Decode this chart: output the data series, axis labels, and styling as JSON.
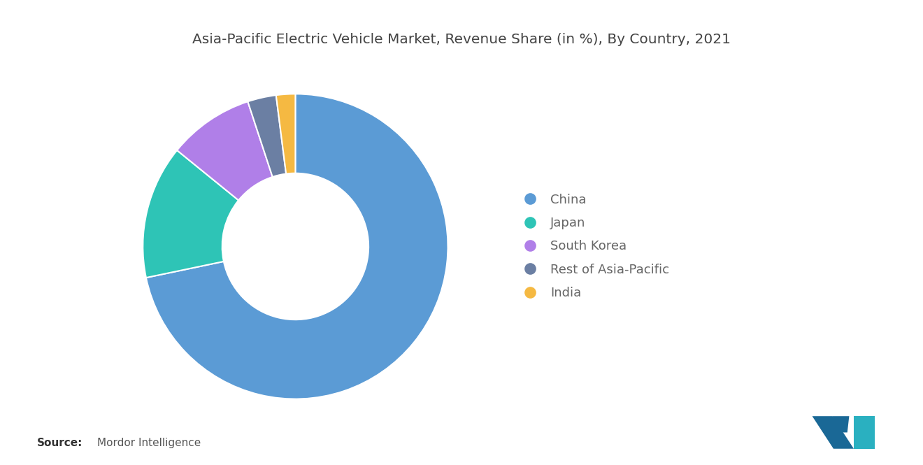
{
  "title": "Asia-Pacific Electric Vehicle Market, Revenue Share (in %), By Country, 2021",
  "labels": [
    "China",
    "Japan",
    "South Korea",
    "Rest of Asia-Pacific",
    "India"
  ],
  "values": [
    71,
    14,
    9,
    3,
    2
  ],
  "colors": [
    "#5b9bd5",
    "#2ec4b6",
    "#b07fe8",
    "#6b7fa3",
    "#f5b942"
  ],
  "source_label": "Source:",
  "source_text": "Mordor Intelligence",
  "background_color": "#ffffff",
  "legend_fontsize": 13,
  "title_fontsize": 14.5,
  "donut_width": 0.52,
  "start_angle": 90
}
